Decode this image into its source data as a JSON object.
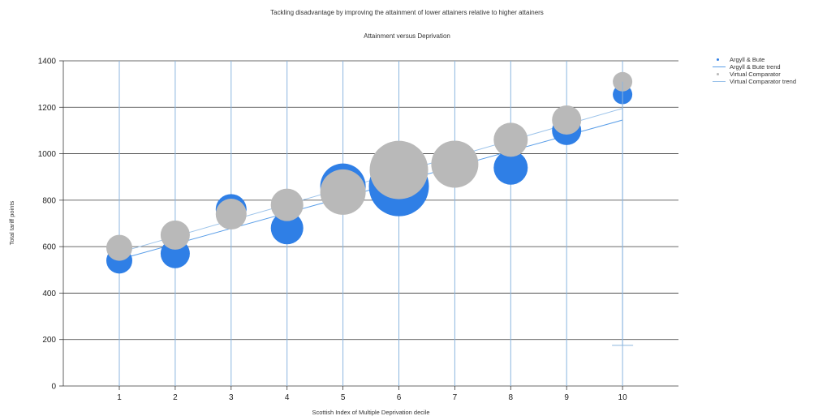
{
  "colors": {
    "argyll": "#2f7fe6",
    "argyll_trend": "#5a9ee8",
    "comparator": "#b9b9b9",
    "comparator_trend": "#9cc3ea",
    "gridline": "#3a3a3a",
    "vgrid": "#8cb6df"
  },
  "chart_data": {
    "type": "bubble",
    "title": "Tackling disadvantage by improving the attainment of lower attainers relative to higher attainers",
    "subtitle": "Attainment versus Deprivation",
    "xlabel": "Scottish Index of Multiple Deprivation decile",
    "ylabel": "Total tariff points",
    "x_ticks": [
      "1",
      "2",
      "3",
      "4",
      "5",
      "6",
      "7",
      "8",
      "9",
      "10"
    ],
    "ylim": [
      0,
      1400
    ],
    "y_ticks": [
      0,
      200,
      400,
      600,
      800,
      1000,
      1200,
      1400
    ],
    "grid": true,
    "legend_position": "right",
    "legend": [
      "Argyll & Bute",
      "Argyll & Bute trend",
      "Virtual Comparator",
      "Virtual Comparator trend"
    ],
    "series": [
      {
        "name": "Argyll & Bute",
        "points": [
          {
            "x": 1,
            "y": 540,
            "size": 16
          },
          {
            "x": 2,
            "y": 570,
            "size": 18
          },
          {
            "x": 3,
            "y": 760,
            "size": 19
          },
          {
            "x": 4,
            "y": 680,
            "size": 20
          },
          {
            "x": 5,
            "y": 860,
            "size": 28
          },
          {
            "x": 6,
            "y": 860,
            "size": 37
          },
          {
            "x": 7,
            "y": 950,
            "size": 27
          },
          {
            "x": 8,
            "y": 940,
            "size": 21
          },
          {
            "x": 9,
            "y": 1100,
            "size": 18
          },
          {
            "x": 10,
            "y": 1255,
            "size": 12
          }
        ]
      },
      {
        "name": "Argyll & Bute trend",
        "line": [
          {
            "x": 1,
            "y": 545
          },
          {
            "x": 10,
            "y": 1145
          }
        ]
      },
      {
        "name": "Virtual Comparator",
        "points": [
          {
            "x": 1,
            "y": 595,
            "size": 16
          },
          {
            "x": 2,
            "y": 650,
            "size": 18
          },
          {
            "x": 3,
            "y": 740,
            "size": 19
          },
          {
            "x": 4,
            "y": 780,
            "size": 20
          },
          {
            "x": 5,
            "y": 835,
            "size": 28
          },
          {
            "x": 6,
            "y": 930,
            "size": 36
          },
          {
            "x": 7,
            "y": 955,
            "size": 29
          },
          {
            "x": 8,
            "y": 1060,
            "size": 21
          },
          {
            "x": 9,
            "y": 1145,
            "size": 18
          },
          {
            "x": 10,
            "y": 1310,
            "size": 12
          }
        ]
      },
      {
        "name": "Virtual Comparator trend",
        "line": [
          {
            "x": 1,
            "y": 575
          },
          {
            "x": 10,
            "y": 1195
          }
        ]
      }
    ],
    "error_bar": {
      "x": 10,
      "low": 175,
      "high": 1310
    }
  }
}
